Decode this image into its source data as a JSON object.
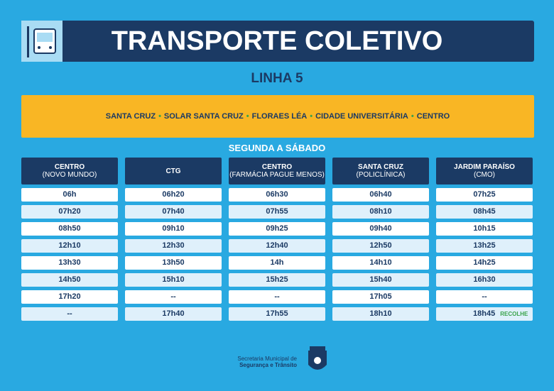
{
  "header": {
    "title": "TRANSPORTE COLETIVO"
  },
  "line": "LINHA 5",
  "route": [
    "SANTA CRUZ",
    "SOLAR SANTA CRUZ",
    "FLORAES LÉA",
    "CIDADE UNIVERSITÁRIA",
    "CENTRO"
  ],
  "days": "SEGUNDA A SÁBADO",
  "columns": [
    {
      "name": "CENTRO",
      "sub": "(NOVO MUNDO)",
      "times": [
        "06h",
        "07h20",
        "08h50",
        "12h10",
        "13h30",
        "14h50",
        "17h20",
        "--"
      ]
    },
    {
      "name": "CTG",
      "times": [
        "06h20",
        "07h40",
        "09h10",
        "12h30",
        "13h50",
        "15h10",
        "--",
        "17h40"
      ]
    },
    {
      "name": "CENTRO",
      "sub": "(FARMÁCIA PAGUE MENOS)",
      "times": [
        "06h30",
        "07h55",
        "09h25",
        "12h40",
        "14h",
        "15h25",
        "--",
        "17h55"
      ]
    },
    {
      "name": "SANTA CRUZ",
      "sub": "(POLICLÍNICA)",
      "times": [
        "06h40",
        "08h10",
        "09h40",
        "12h50",
        "14h10",
        "15h40",
        "17h05",
        "18h10"
      ]
    },
    {
      "name": "JARDIM PARAÍSO",
      "sub": "(CMO)",
      "times": [
        "07h25",
        "08h45",
        "10h15",
        "13h25",
        "14h25",
        "16h30",
        "--",
        "18h45"
      ],
      "note": "RECOLHE"
    }
  ],
  "footer": {
    "line1": "Secretaria Municipal de",
    "line2": "Segurança e Trânsito"
  }
}
